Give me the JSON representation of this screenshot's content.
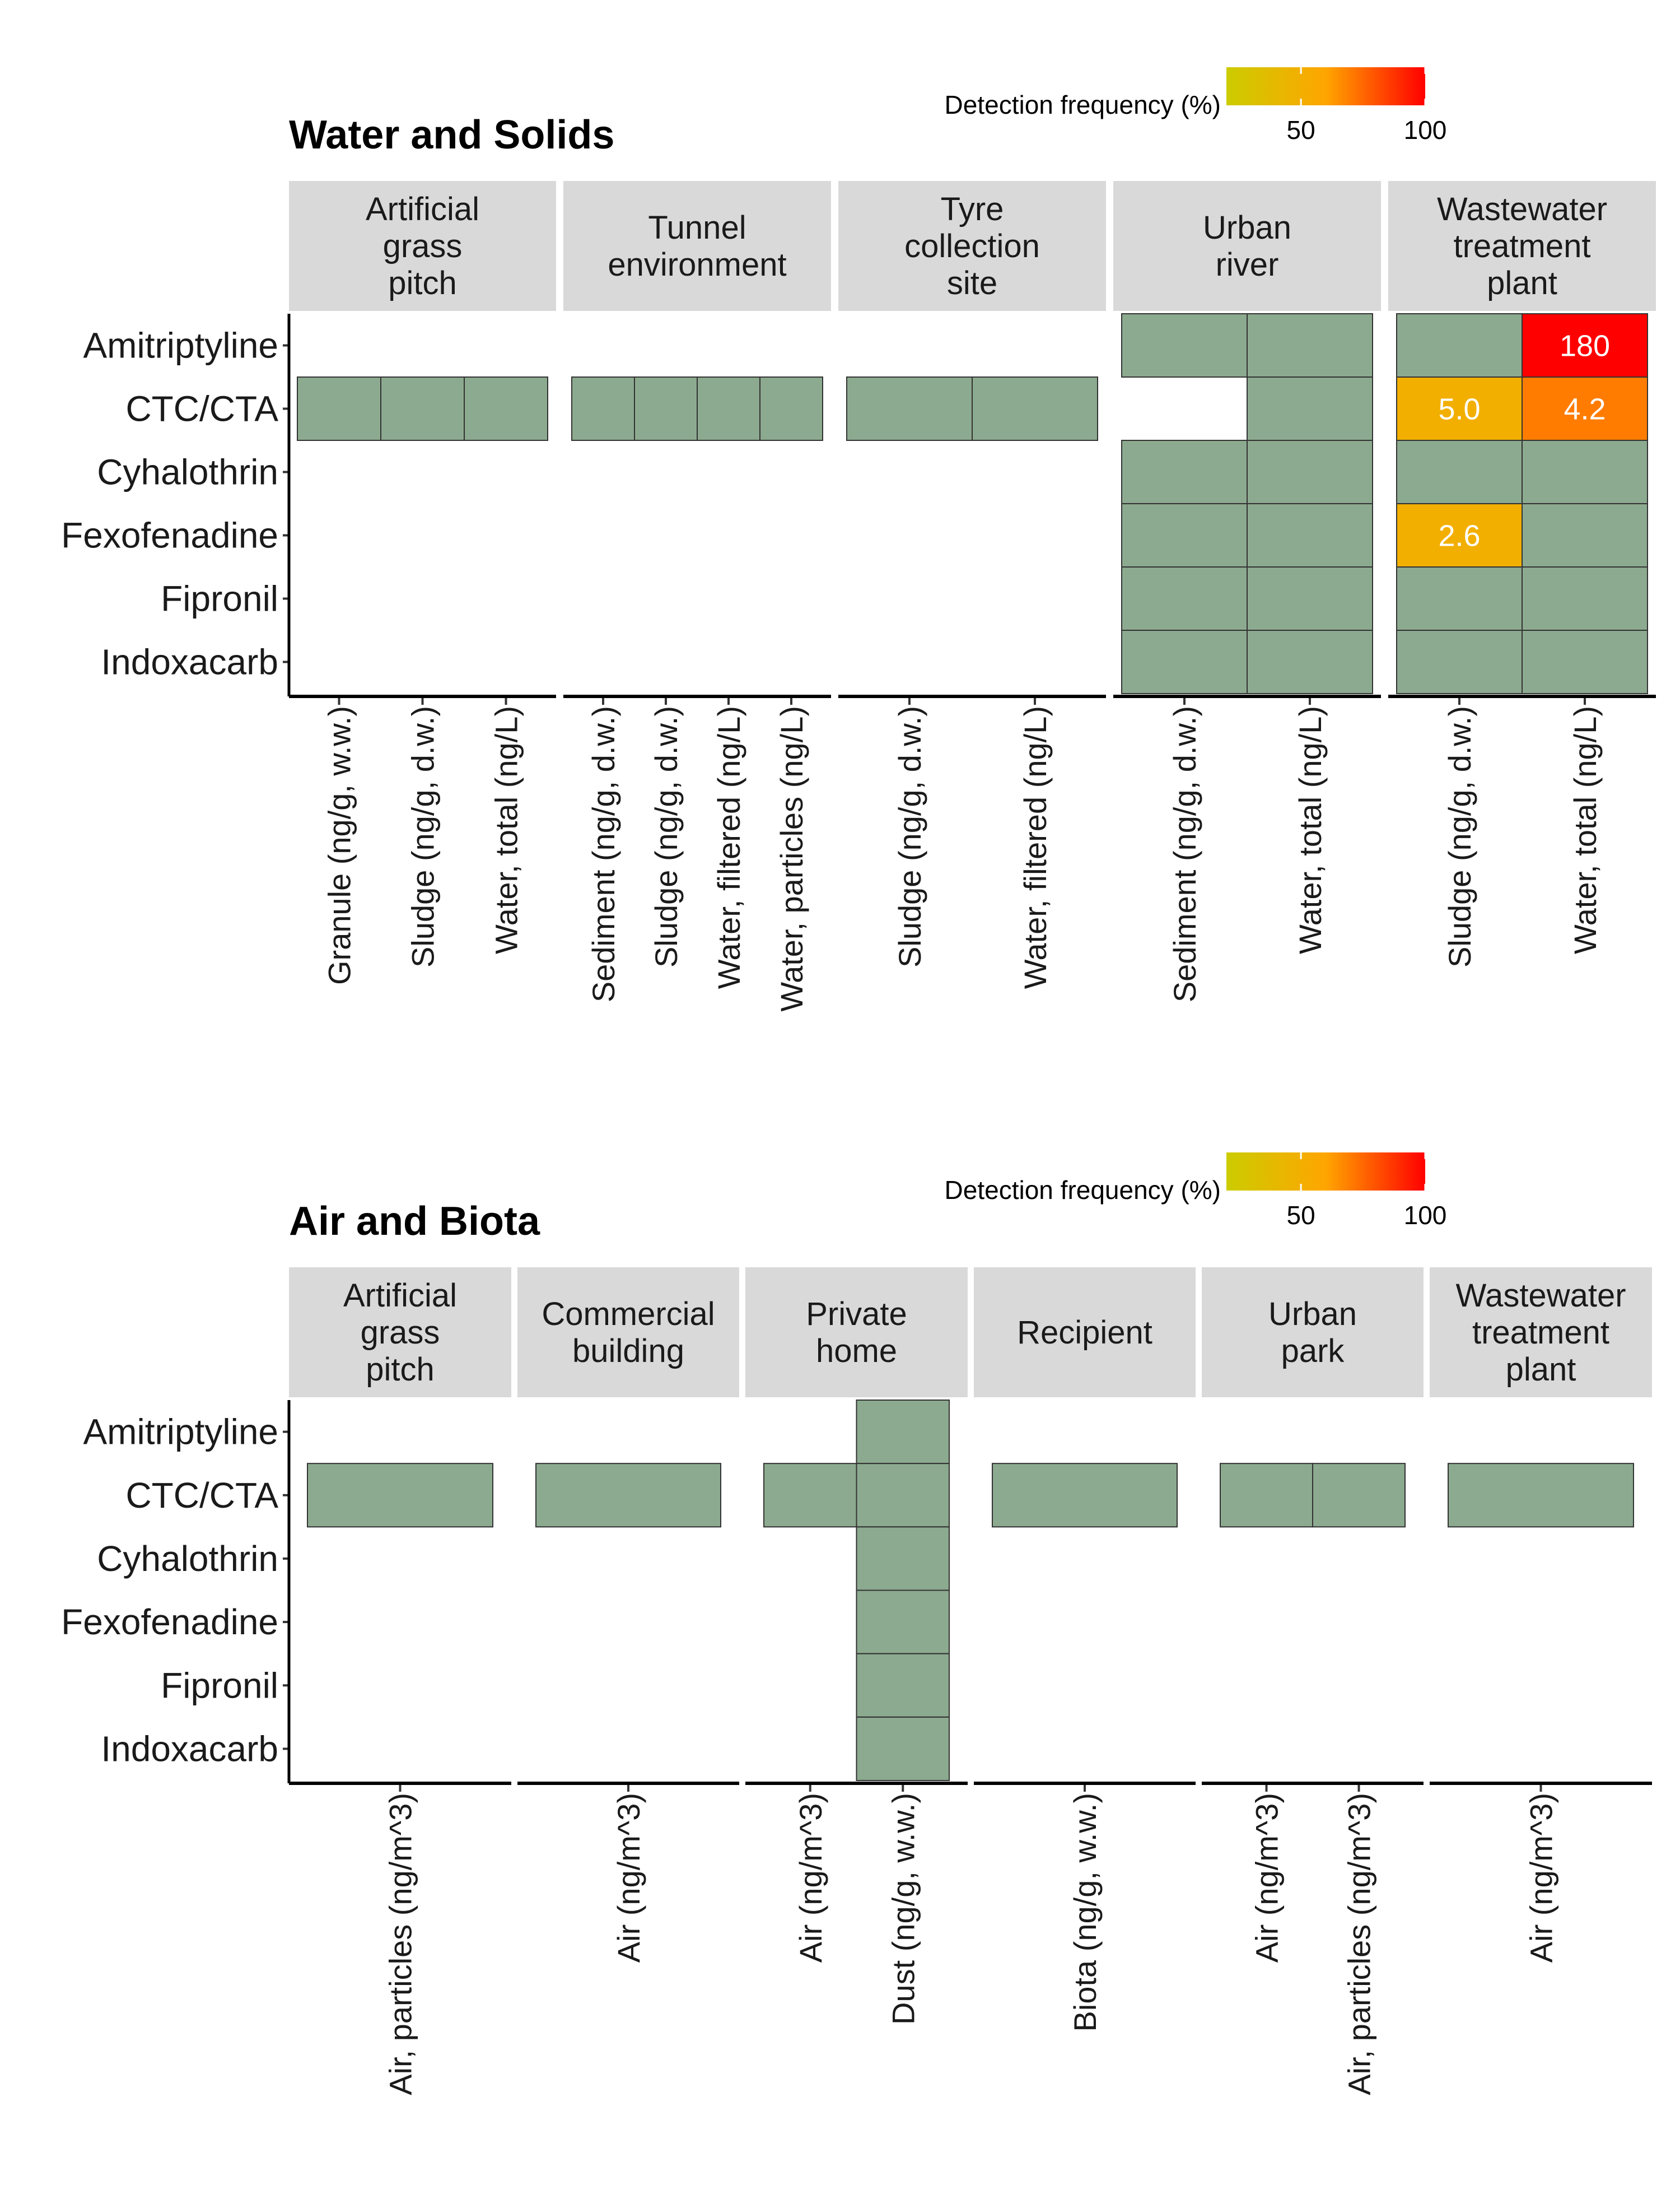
{
  "chart_data": [
    {
      "type": "heatmap",
      "title": "Water and Solids",
      "rows": [
        "Amitriptyline",
        "CTC/CTA",
        "Cyhalothrin",
        "Fexofenadine",
        "Fipronil",
        "Indoxacarb"
      ],
      "legend": {
        "title": "Detection frequency (%)",
        "ticks": [
          "50",
          "100"
        ],
        "range": [
          20,
          100
        ],
        "colors": [
          "#cccc00",
          "#ffa500",
          "#ff0000"
        ]
      },
      "not_detected_color": "#8caa8f",
      "facets": [
        {
          "label": [
            "Artificial",
            "grass",
            "pitch"
          ],
          "columns": [
            "Granule (ng/g, w.w.)",
            "Sludge (ng/g, d.w.)",
            "Water, total (ng/L)"
          ],
          "cells": [
            {
              "row": "CTC/CTA",
              "col": "Granule (ng/g, w.w.)"
            },
            {
              "row": "CTC/CTA",
              "col": "Sludge (ng/g, d.w.)"
            },
            {
              "row": "CTC/CTA",
              "col": "Water, total (ng/L)"
            }
          ]
        },
        {
          "label": [
            "Tunnel",
            "environment"
          ],
          "columns": [
            "Sediment (ng/g, d.w.)",
            "Sludge (ng/g, d.w.)",
            "Water, filtered (ng/L)",
            "Water, particles (ng/L)"
          ],
          "cells": [
            {
              "row": "CTC/CTA",
              "col": "Sediment (ng/g, d.w.)"
            },
            {
              "row": "CTC/CTA",
              "col": "Sludge (ng/g, d.w.)"
            },
            {
              "row": "CTC/CTA",
              "col": "Water, filtered (ng/L)"
            },
            {
              "row": "CTC/CTA",
              "col": "Water, particles (ng/L)"
            }
          ]
        },
        {
          "label": [
            "Tyre",
            "collection",
            "site"
          ],
          "columns": [
            "Sludge (ng/g, d.w.)",
            "Water, filtered (ng/L)"
          ],
          "cells": [
            {
              "row": "CTC/CTA",
              "col": "Sludge (ng/g, d.w.)"
            },
            {
              "row": "CTC/CTA",
              "col": "Water, filtered (ng/L)"
            }
          ]
        },
        {
          "label": [
            "Urban",
            "river"
          ],
          "columns": [
            "Sediment (ng/g, d.w.)",
            "Water, total (ng/L)"
          ],
          "cells": [
            {
              "row": "Amitriptyline",
              "col": "Sediment (ng/g, d.w.)"
            },
            {
              "row": "Amitriptyline",
              "col": "Water, total (ng/L)"
            },
            {
              "row": "CTC/CTA",
              "col": "Water, total (ng/L)"
            },
            {
              "row": "Cyhalothrin",
              "col": "Sediment (ng/g, d.w.)"
            },
            {
              "row": "Cyhalothrin",
              "col": "Water, total (ng/L)"
            },
            {
              "row": "Fexofenadine",
              "col": "Sediment (ng/g, d.w.)"
            },
            {
              "row": "Fexofenadine",
              "col": "Water, total (ng/L)"
            },
            {
              "row": "Fipronil",
              "col": "Sediment (ng/g, d.w.)"
            },
            {
              "row": "Fipronil",
              "col": "Water, total (ng/L)"
            },
            {
              "row": "Indoxacarb",
              "col": "Sediment (ng/g, d.w.)"
            },
            {
              "row": "Indoxacarb",
              "col": "Water, total (ng/L)"
            }
          ]
        },
        {
          "label": [
            "Wastewater",
            "treatment",
            "plant"
          ],
          "columns": [
            "Sludge (ng/g, d.w.)",
            "Water, total (ng/L)"
          ],
          "cells": [
            {
              "row": "Amitriptyline",
              "col": "Sludge (ng/g, d.w.)"
            },
            {
              "row": "Amitriptyline",
              "col": "Water, total (ng/L)",
              "detection_frequency": 100,
              "value_label": "180"
            },
            {
              "row": "CTC/CTA",
              "col": "Sludge (ng/g, d.w.)",
              "detection_frequency": 50,
              "value_label": "5.0"
            },
            {
              "row": "CTC/CTA",
              "col": "Water, total (ng/L)",
              "detection_frequency": 70,
              "value_label": "4.2"
            },
            {
              "row": "Cyhalothrin",
              "col": "Sludge (ng/g, d.w.)"
            },
            {
              "row": "Cyhalothrin",
              "col": "Water, total (ng/L)"
            },
            {
              "row": "Fexofenadine",
              "col": "Sludge (ng/g, d.w.)",
              "detection_frequency": 50,
              "value_label": "2.6"
            },
            {
              "row": "Fexofenadine",
              "col": "Water, total (ng/L)"
            },
            {
              "row": "Fipronil",
              "col": "Sludge (ng/g, d.w.)"
            },
            {
              "row": "Fipronil",
              "col": "Water, total (ng/L)"
            },
            {
              "row": "Indoxacarb",
              "col": "Sludge (ng/g, d.w.)"
            },
            {
              "row": "Indoxacarb",
              "col": "Water, total (ng/L)"
            }
          ]
        }
      ]
    },
    {
      "type": "heatmap",
      "title": "Air and Biota",
      "rows": [
        "Amitriptyline",
        "CTC/CTA",
        "Cyhalothrin",
        "Fexofenadine",
        "Fipronil",
        "Indoxacarb"
      ],
      "legend": {
        "title": "Detection frequency (%)",
        "ticks": [
          "50",
          "100"
        ],
        "range": [
          20,
          100
        ],
        "colors": [
          "#cccc00",
          "#ffa500",
          "#ff0000"
        ]
      },
      "not_detected_color": "#8caa8f",
      "facets": [
        {
          "label": [
            "Artificial",
            "grass",
            "pitch"
          ],
          "columns": [
            "Air, particles (ng/m^3)"
          ],
          "cells": [
            {
              "row": "CTC/CTA",
              "col": "Air, particles (ng/m^3)"
            }
          ]
        },
        {
          "label": [
            "Commercial",
            "building"
          ],
          "columns": [
            "Air (ng/m^3)"
          ],
          "cells": [
            {
              "row": "CTC/CTA",
              "col": "Air (ng/m^3)"
            }
          ]
        },
        {
          "label": [
            "Private",
            "home"
          ],
          "columns": [
            "Air (ng/m^3)",
            "Dust (ng/g, w.w.)"
          ],
          "cells": [
            {
              "row": "CTC/CTA",
              "col": "Air (ng/m^3)"
            },
            {
              "row": "Amitriptyline",
              "col": "Dust (ng/g, w.w.)"
            },
            {
              "row": "CTC/CTA",
              "col": "Dust (ng/g, w.w.)"
            },
            {
              "row": "Cyhalothrin",
              "col": "Dust (ng/g, w.w.)"
            },
            {
              "row": "Fexofenadine",
              "col": "Dust (ng/g, w.w.)"
            },
            {
              "row": "Fipronil",
              "col": "Dust (ng/g, w.w.)"
            },
            {
              "row": "Indoxacarb",
              "col": "Dust (ng/g, w.w.)"
            }
          ]
        },
        {
          "label": [
            "Recipient"
          ],
          "columns": [
            "Biota (ng/g, w.w.)"
          ],
          "cells": [
            {
              "row": "CTC/CTA",
              "col": "Biota (ng/g, w.w.)"
            }
          ]
        },
        {
          "label": [
            "Urban",
            "park"
          ],
          "columns": [
            "Air (ng/m^3)",
            "Air, particles (ng/m^3)"
          ],
          "cells": [
            {
              "row": "CTC/CTA",
              "col": "Air (ng/m^3)"
            },
            {
              "row": "CTC/CTA",
              "col": "Air, particles (ng/m^3)"
            }
          ]
        },
        {
          "label": [
            "Wastewater",
            "treatment",
            "plant"
          ],
          "columns": [
            "Air (ng/m^3)"
          ],
          "cells": [
            {
              "row": "CTC/CTA",
              "col": "Air (ng/m^3)"
            }
          ]
        }
      ]
    }
  ]
}
